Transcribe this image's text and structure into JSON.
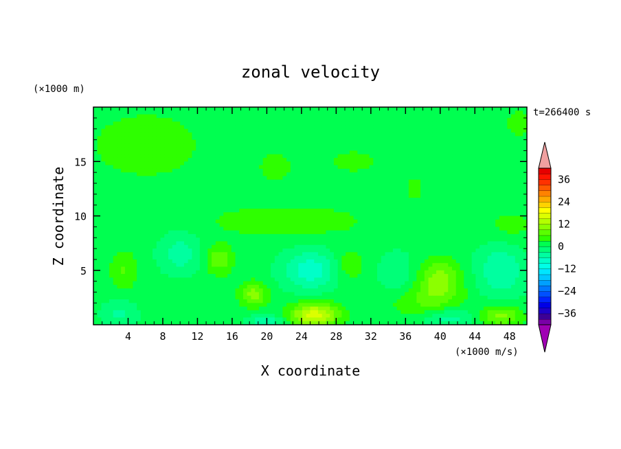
{
  "chart_data": {
    "type": "heatmap",
    "title": "zonal velocity",
    "xlabel": "X coordinate",
    "ylabel": "Z coordinate",
    "x_unit": "(×1000 m/s)",
    "y_unit": "(×1000 m)",
    "time_label": "t=266400 s",
    "xlim": [
      0,
      50
    ],
    "ylim": [
      0,
      20
    ],
    "x_ticks": [
      4,
      8,
      12,
      16,
      20,
      24,
      28,
      32,
      36,
      40,
      44,
      48
    ],
    "y_ticks": [
      5,
      10,
      15
    ],
    "colorbar": {
      "levels": [
        -42,
        -39,
        -36,
        -33,
        -30,
        -27,
        -24,
        -21,
        -18,
        -15,
        -12,
        -9,
        -6,
        -3,
        0,
        3,
        6,
        9,
        12,
        15,
        18,
        21,
        24,
        27,
        30,
        33,
        36,
        39,
        42
      ],
      "tick_labels": [
        36,
        24,
        12,
        0,
        -12,
        -24,
        -36
      ],
      "colors": [
        "#7a00a8",
        "#3c0096",
        "#1e00c8",
        "#0000e6",
        "#0024ff",
        "#0050ff",
        "#0078ff",
        "#00a0ff",
        "#00c8ff",
        "#00e6ff",
        "#00ffe6",
        "#00ffc8",
        "#00ffa0",
        "#00ff78",
        "#00ff50",
        "#2eff00",
        "#5aff00",
        "#8cff00",
        "#b4ff00",
        "#dcff00",
        "#ffff00",
        "#ffd200",
        "#ffaa00",
        "#ff8200",
        "#ff5a00",
        "#ff3200",
        "#ff1400",
        "#e60000"
      ],
      "under_color": "#a000b4",
      "over_color": "#f0a0a0"
    },
    "field_regions": [
      {
        "x": 25,
        "z": 5,
        "sx": 3.2,
        "sz": 1.8,
        "value": -9
      },
      {
        "x": 10,
        "z": 6.5,
        "sx": 2.4,
        "sz": 1.8,
        "value": -6
      },
      {
        "x": 47,
        "z": 5,
        "sx": 2.8,
        "sz": 2.5,
        "value": -7
      },
      {
        "x": 35,
        "z": 4.5,
        "sx": 2.2,
        "sz": 2.2,
        "value": -4
      },
      {
        "x": 25.5,
        "z": 0.9,
        "sx": 2.8,
        "sz": 1.1,
        "value": 15
      },
      {
        "x": 18.5,
        "z": 2.8,
        "sx": 1.6,
        "sz": 1.1,
        "value": 9
      },
      {
        "x": 40,
        "z": 4.2,
        "sx": 2.4,
        "sz": 1.8,
        "value": 9
      },
      {
        "x": 47,
        "z": 0.8,
        "sx": 2.4,
        "sz": 0.9,
        "value": 9
      },
      {
        "x": 14.5,
        "z": 6.0,
        "sx": 1.6,
        "sz": 1.4,
        "value": 7
      },
      {
        "x": 29.5,
        "z": 5.5,
        "sx": 1.6,
        "sz": 1.4,
        "value": 5
      },
      {
        "x": 3.5,
        "z": 5.0,
        "sx": 1.6,
        "sz": 1.8,
        "value": 5
      },
      {
        "x": 38,
        "z": 2.2,
        "sx": 4.5,
        "sz": 1.5,
        "value": 5
      },
      {
        "x": 6,
        "z": 16.5,
        "sx": 8,
        "sz": 3.8,
        "value": 3
      },
      {
        "x": 21,
        "z": 14.5,
        "sx": 2.2,
        "sz": 1.6,
        "value": 3
      },
      {
        "x": 26,
        "z": 9.5,
        "sx": 6,
        "sz": 1.5,
        "value": 3
      },
      {
        "x": 18,
        "z": 9.5,
        "sx": 5,
        "sz": 1.3,
        "value": 3
      },
      {
        "x": 48,
        "z": 9.0,
        "sx": 3,
        "sz": 1.6,
        "value": 3
      },
      {
        "x": 37,
        "z": 12.5,
        "sx": 1.2,
        "sz": 1.2,
        "value": 3
      },
      {
        "x": 49,
        "z": 18.5,
        "sx": 1.6,
        "sz": 1.6,
        "value": 3
      },
      {
        "x": 30,
        "z": 15.0,
        "sx": 3,
        "sz": 1.2,
        "value": 3
      },
      {
        "x": 3,
        "z": 1.0,
        "sx": 2,
        "sz": 1.2,
        "value": -5
      },
      {
        "x": 20,
        "z": 0.3,
        "sx": 2,
        "sz": 0.6,
        "value": -7
      },
      {
        "x": 41,
        "z": 0.6,
        "sx": 3,
        "sz": 0.9,
        "value": -6
      }
    ]
  }
}
